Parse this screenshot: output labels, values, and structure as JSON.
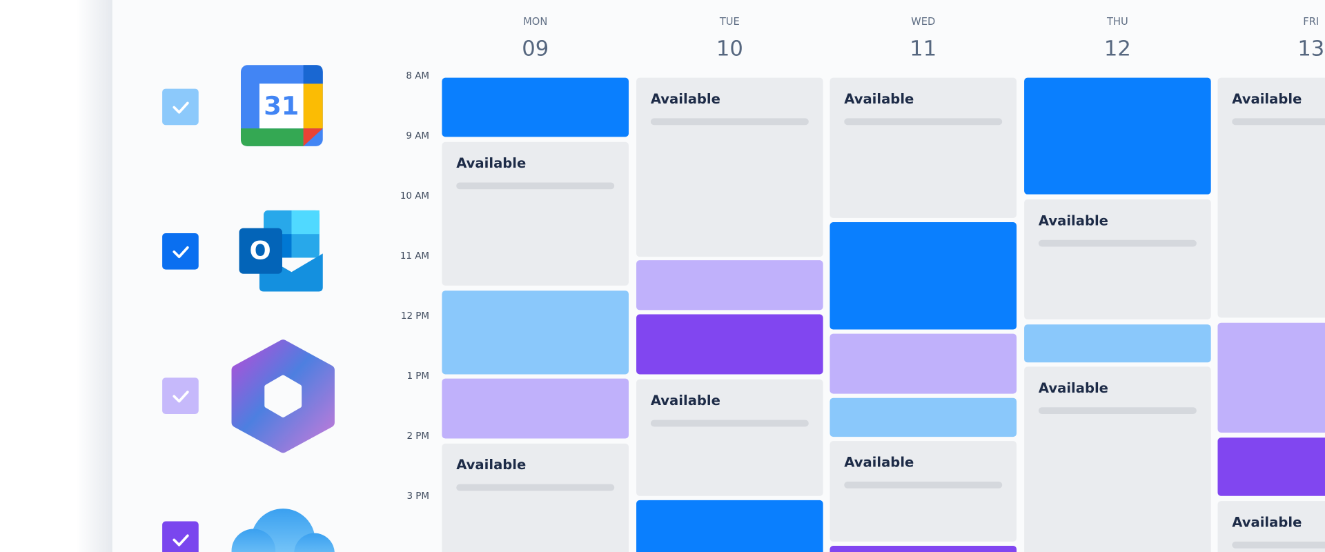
{
  "icons": {
    "google_calendar_day": "31",
    "outlook_letter": "O"
  },
  "times": [
    "8 AM",
    "9 AM",
    "10 AM",
    "11 AM",
    "12 PM",
    "1 PM",
    "2 PM",
    "3 PM"
  ],
  "days": [
    {
      "name": "MON",
      "date": "09",
      "available": [
        "Available",
        "Available"
      ]
    },
    {
      "name": "TUE",
      "date": "10",
      "available": [
        "Available",
        "Available"
      ]
    },
    {
      "name": "WED",
      "date": "11",
      "available": [
        "Available",
        "Available"
      ]
    },
    {
      "name": "THU",
      "date": "12",
      "available": [
        "Available",
        "Available"
      ]
    },
    {
      "name": "FRI",
      "date": "13",
      "available": [
        "Available",
        "Available"
      ]
    }
  ]
}
